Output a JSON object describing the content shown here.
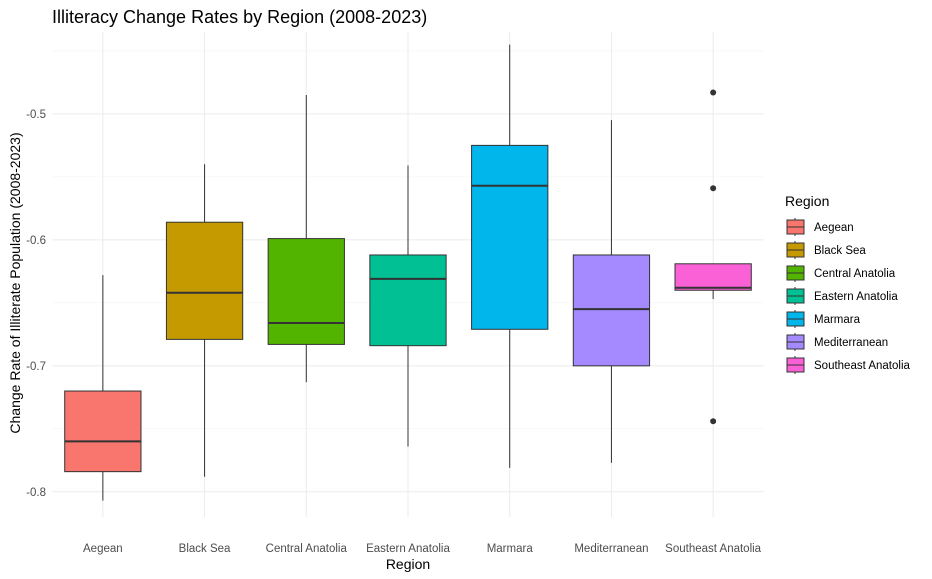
{
  "chart_data": {
    "type": "boxplot",
    "title": "Illiteracy Change Rates by Region (2008-2023)",
    "xlabel": "Region",
    "ylabel": "Change Rate of Illiterate Population (2008-2023)",
    "ylim": [
      -0.82,
      -0.435
    ],
    "y_ticks": [
      -0.8,
      -0.7,
      -0.6,
      -0.5
    ],
    "y_tick_labels": [
      "-0.8",
      "-0.7",
      "-0.6",
      "-0.5"
    ],
    "grid": true,
    "legend": {
      "title": "Region",
      "position": "right"
    },
    "categories": [
      "Aegean",
      "Black Sea",
      "Central Anatolia",
      "Eastern Anatolia",
      "Marmara",
      "Mediterranean",
      "Southeast Anatolia"
    ],
    "series": [
      {
        "name": "Aegean",
        "color": "#F8766D",
        "whisker_low": -0.807,
        "q1": -0.784,
        "median": -0.76,
        "q3": -0.72,
        "whisker_high": -0.628,
        "outliers": []
      },
      {
        "name": "Black Sea",
        "color": "#C49A00",
        "whisker_low": -0.788,
        "q1": -0.679,
        "median": -0.642,
        "q3": -0.586,
        "whisker_high": -0.54,
        "outliers": []
      },
      {
        "name": "Central Anatolia",
        "color": "#53B400",
        "whisker_low": -0.713,
        "q1": -0.683,
        "median": -0.666,
        "q3": -0.599,
        "whisker_high": -0.485,
        "outliers": []
      },
      {
        "name": "Eastern Anatolia",
        "color": "#00C094",
        "whisker_low": -0.764,
        "q1": -0.684,
        "median": -0.631,
        "q3": -0.612,
        "whisker_high": -0.541,
        "outliers": []
      },
      {
        "name": "Marmara",
        "color": "#00B6EB",
        "whisker_low": -0.781,
        "q1": -0.671,
        "median": -0.557,
        "q3": -0.525,
        "whisker_high": -0.445,
        "outliers": []
      },
      {
        "name": "Mediterranean",
        "color": "#A58AFF",
        "whisker_low": -0.777,
        "q1": -0.7,
        "median": -0.655,
        "q3": -0.612,
        "whisker_high": -0.505,
        "outliers": []
      },
      {
        "name": "Southeast Anatolia",
        "color": "#FB61D7",
        "whisker_low": -0.647,
        "q1": -0.64,
        "median": -0.638,
        "q3": -0.619,
        "whisker_high": -0.619,
        "outliers": [
          -0.483,
          -0.559,
          -0.744
        ]
      }
    ]
  }
}
